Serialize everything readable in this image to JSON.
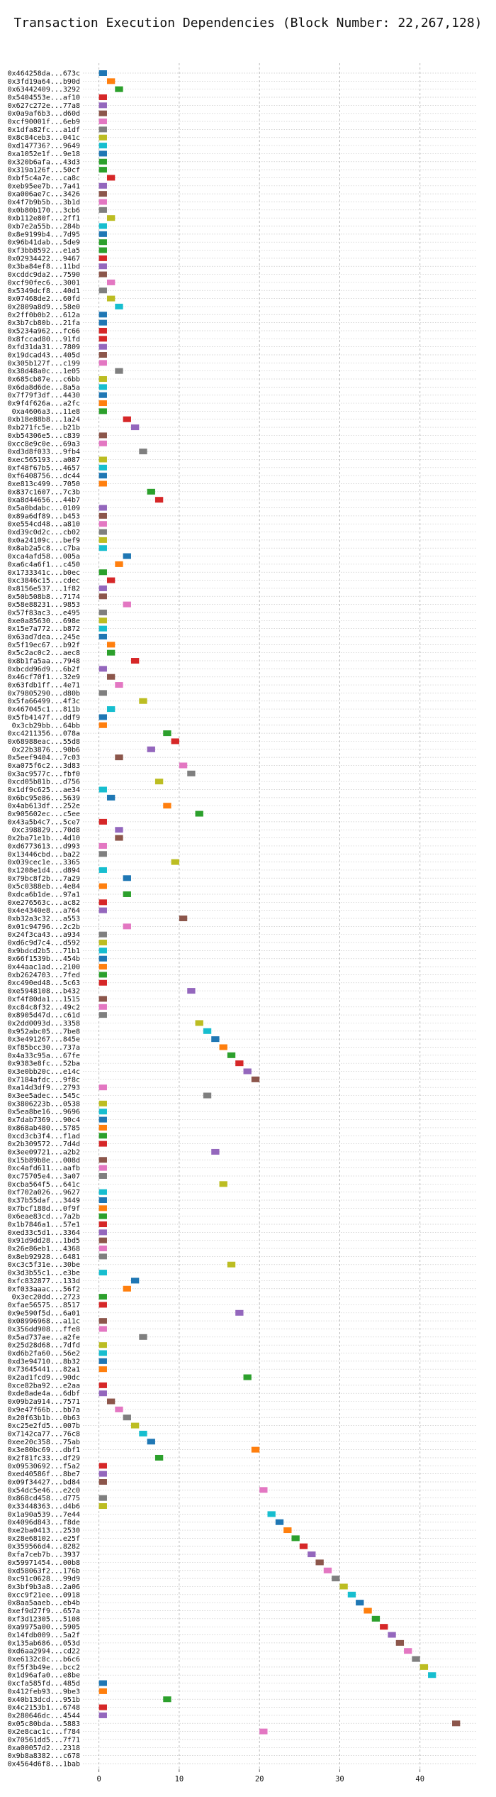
{
  "chart_data": {
    "type": "gantt",
    "title": "Transaction Execution Dependencies (Block Number: 22,267,128)",
    "xlabel": "",
    "ylabel": "",
    "xlim": [
      -2,
      47
    ],
    "x_ticks": [
      0,
      10,
      20,
      30,
      40
    ],
    "grid": true,
    "bar_width": 1,
    "palette": [
      "#1f77b4",
      "#ff7f0e",
      "#2ca02c",
      "#d62728",
      "#9467bd",
      "#8c564b",
      "#e377c2",
      "#7f7f7f",
      "#bcbd22",
      "#17becf"
    ],
    "transactions": [
      "0x464258da...673c",
      "0x3fd19a64...b90d",
      "0x63442409...3292",
      "0x5404553e...af10",
      "0x627c272e...77a8",
      "0x0a9af6b3...d60d",
      "0xcf90001f...6eb9",
      "0x1dfa82fc...a1df",
      "0x8c84ceb3...041c",
      "0xd147736?...9649",
      "0xa1052e1f...9e18",
      "0x320b6afa...43d3",
      "0x319a126f...50cf",
      "0xbf5c4a7e...ca8c",
      "0xeb95ee7b...7a41",
      "0xa006ae7c...3426",
      "0x4f7b9b5b...3b1d",
      "0x0b80b170...3cb6",
      "0xb112e80f...2ff1",
      "0xb7e2a55b...284b",
      "0x8e9199b4...7d95",
      "0x96b41dab...5de9",
      "0xf3bb8592...e1a5",
      "0x02934422...9467",
      "0x3ba84ef8...11bd",
      "0xcddc9da2...7590",
      "0xcf90fec6...3001",
      "0x5349dcf8...40d1",
      "0x07468de2...60fd",
      "0x2809a8d9...58e0",
      "0x2ff0b0b2...612a",
      "0x3b7cb80b...21fa",
      "0x5234a962...fc66",
      "0x8fccad80...91fd",
      "0xfd31da31...7809",
      "0x19dcad43...405d",
      "0x305b127f...c199",
      "0x38d48a0c...1e05",
      "0x685cb87e...c6bb",
      "0x6da8d6de...8a5a",
      "0x7f79f3df...4430",
      "0x9f4f626a...a2fc",
      "0xa4606a3...11e8",
      "0xb18e88b8...1a24",
      "0xb271fc5e...b21b",
      "0xb54306e5...c839",
      "0xcc8e9c0e...69a3",
      "0xd3d8f033...9fb4",
      "0xec565193...a087",
      "0xf48f67b5...4657",
      "0xf6408756...dc44",
      "0xe813c499...7050",
      "0x837c1607...7c3b",
      "0xa8d44656...44b7",
      "0x5a0bdabc...0109",
      "0x89a6df89...b453",
      "0xe554cd48...a810",
      "0xd39c0d2c...cb02",
      "0x0a24109c...bef9",
      "0x8ab2a5c8...c7ba",
      "0xca4afd58...005a",
      "0xa6c4a6f1...c450",
      "0x1733341c...b0ec",
      "0xc3846c15...cdec",
      "0x8156e537...1f82",
      "0x50b508b8...7174",
      "0x58e88231...9853",
      "0x57f83ac3...e495",
      "0xe0a85630...698e",
      "0x15e7a772...b872",
      "0x63ad7dea...245e",
      "0x5f19ec67...b92f",
      "0x5c2ac0c2...aec8",
      "0x8b1fa5aa...7948",
      "0xbcdd96d9...6b2f",
      "0x46cf70f1...32e9",
      "0x63fdb1ff...4e71",
      "0x79805290...d80b",
      "0x5fa66499...4f3c",
      "0x467045c1...811b",
      "0x5fb4147f...ddf9",
      "0x3cb29bb...64bb",
      "0xc4211356...078a",
      "0x68988eac...55d8",
      "0x22b3876...90b6",
      "0x5eef9404...7c03",
      "0xa075f6c2...3d83",
      "0x3ac9577c...fbf0",
      "0xcd05b81b...d756",
      "0x1df9c625...ae34",
      "0x6bc95e86...5639",
      "0x4ab613df...252e",
      "0x905602ec...c5ee",
      "0x43a5b4c7...5ce7",
      "0xc398829...70d8",
      "0x2ba71e1b...4d10",
      "0xd6773613...d993",
      "0x13446cbd...ba22",
      "0x039cec1e...3365",
      "0x1208e1d4...d894",
      "0x79bc8f2b...7a29",
      "0x5c0388eb...4e84",
      "0xdca6b1de...97a1",
      "0xe276563c...ac82",
      "0x4e4340e8...a764",
      "0xb32a3c32...a553",
      "0x01c94796...2c2b",
      "0x24f3ca43...a934",
      "0xd6c9d7c4...d592",
      "0x9bdcd2b5...71b1",
      "0x66f1539b...454b",
      "0x44aac1ad...2100",
      "0xb2624703...7fed",
      "0xc490ed48...5c63",
      "0xe5948108...b432",
      "0xf4f80da1...1515",
      "0xc84c8f32...49c2",
      "0x8905d47d...c61d",
      "0x2dd0093d...3358",
      "0x952abc05...7be8",
      "0x3e491267...845e",
      "0xf85bcc30...737a",
      "0x4a33c95a...67fe",
      "0x9383e8fc...52ba",
      "0x3e0bb20c...e14c",
      "0x7184afdc...9f8c",
      "0xa14d3df9...2793",
      "0x3ee5adec...545c",
      "0x3806223b...0538",
      "0x5ea8be16...9696",
      "0x7dab7369...90c4",
      "0x868ab480...5785",
      "0xcd3cb3f4...f1ad",
      "0x2b309572...7d4d",
      "0x3ee09721...a2b2",
      "0x15b89b8e...008d",
      "0xc4afd611...aafb",
      "0xc75705e4...3a07",
      "0xcba564f5...641c",
      "0xf702a026...9627",
      "0x37b55daf...3449",
      "0x7bcf188d...0f9f",
      "0x6eae83cd...7a2b",
      "0x1b7846a1...57e1",
      "0xed33c5d1...3364",
      "0x91d9dd28...1bd5",
      "0x26e86eb1...4368",
      "0x8eb92928...6481",
      "0xc3c5f31e...30be",
      "0x3d3b55c1...e3be",
      "0xfc832877...133d",
      "0xf033aaac...56f2",
      "0x3ec20dd...2723",
      "0xfae56575...8517",
      "0x9e590f5d...6a01",
      "0x08996968...a11c",
      "0x356dd908...ffe8",
      "0x5ad737ae...a2fe",
      "0x25d28d68...7dfd",
      "0xd6b2fa60...56e2",
      "0xd3e94710...8b32",
      "0x73645441...82a1",
      "0x2ad1fcd9...90dc",
      "0xce82ba92...e2aa",
      "0xde8ade4a...6dbf",
      "0x09b2a914...7571",
      "0x9e47f66b...bb7a",
      "0x20f63b1b...0b63",
      "0xc25e2fd5...007b",
      "0x7142ca77...76c8",
      "0xee20c358...75ab",
      "0x3e80bc69...dbf1",
      "0x2f81fc33...df29",
      "0x09530692...f5a2",
      "0xed40586f...8be7",
      "0x09f34427...bd84",
      "0x54dc5e46...e2c0",
      "0x868cd458...d775",
      "0x33448363...d4b6",
      "0x1a90a539...7e44",
      "0x4096d843...f8de",
      "0xe2ba0413...2530",
      "0x28e68102...e25f",
      "0x359566d4...8282",
      "0xfa7ceb7b...3937",
      "0x59971454...00b8",
      "0xd58063f2...176b",
      "0xc91c0628...99d9",
      "0x3bf9b3a8...2a06",
      "0xcc9f21ee...0918",
      "0x8aa5aaeb...eb4b",
      "0xef9d27f9...657a",
      "0xf3d12305...5108",
      "0xa9975a00...5905",
      "0x14fdb009...5a2f",
      "0x135ab686...053d",
      "0xd6aa2994...cd22",
      "0xe6132c8c...b6c6",
      "0xf5f3b49e...bcc2",
      "0x1d96afa0...e8be",
      "0xcfa585fd...485d",
      "0x412feb93...9be3",
      "0x40b13dcd...951b",
      "0x4c2153b1...6748",
      "0x280646dc...4544",
      "0x05c80bda...5883",
      "0x2e8cac1c...f784",
      "0x70561dd5...7f71",
      "0xa00057d2...2318",
      "0x9b8a8382...c678",
      "0x4564d6f8...1bab"
    ],
    "starts": [
      0,
      1,
      2,
      0,
      0,
      0,
      0,
      0,
      0,
      0,
      0,
      0,
      0,
      1,
      0,
      0,
      0,
      0,
      1,
      0,
      0,
      0,
      0,
      0,
      0,
      0,
      1,
      0,
      1,
      2,
      0,
      0,
      0,
      0,
      0,
      0,
      0,
      2,
      0,
      0,
      0,
      0,
      0,
      3,
      4,
      0,
      0,
      5,
      0,
      0,
      0,
      0,
      6,
      7,
      0,
      0,
      0,
      0,
      0,
      0,
      3,
      2,
      0,
      1,
      0,
      0,
      3,
      0,
      0,
      0,
      0,
      1,
      1,
      4,
      0,
      1,
      2,
      0,
      5,
      1,
      0,
      0,
      8,
      9,
      6,
      2,
      10,
      11,
      7,
      0,
      1,
      8,
      12,
      0,
      2,
      2,
      0,
      0,
      9,
      0,
      3,
      0,
      3,
      0,
      0,
      10,
      3,
      0,
      0,
      0,
      0,
      0,
      0,
      0,
      11,
      0,
      0,
      0,
      12,
      13,
      14,
      15,
      16,
      17,
      18,
      19,
      0,
      13,
      0,
      0,
      0,
      0,
      0,
      0,
      14,
      0,
      0,
      0,
      15,
      0,
      0,
      0,
      0,
      0,
      0,
      0,
      0,
      0,
      16,
      0,
      4,
      3,
      0,
      0,
      17,
      0,
      0,
      5,
      0,
      0,
      0,
      0,
      18,
      0,
      0,
      1,
      2,
      3,
      4,
      5,
      6,
      19,
      7,
      0,
      0,
      0,
      20,
      0,
      0,
      21,
      22,
      23,
      24,
      25,
      26,
      27,
      28,
      29,
      30,
      31,
      32,
      33,
      34,
      35,
      36,
      37,
      38,
      39,
      40,
      41,
      0,
      0,
      8,
      0,
      0,
      44,
      20
    ],
    "colors": [
      0,
      1,
      2,
      3,
      4,
      5,
      6,
      7,
      8,
      9,
      0,
      2,
      2,
      3,
      4,
      5,
      6,
      7,
      8,
      9,
      0,
      2,
      2,
      3,
      4,
      5,
      6,
      7,
      8,
      9,
      0,
      0,
      3,
      3,
      4,
      5,
      6,
      7,
      8,
      9,
      0,
      1,
      2,
      3,
      4,
      5,
      6,
      7,
      8,
      9,
      0,
      1,
      2,
      3,
      4,
      5,
      6,
      7,
      8,
      9,
      0,
      1,
      2,
      3,
      4,
      5,
      6,
      7,
      8,
      9,
      0,
      1,
      2,
      3,
      4,
      5,
      6,
      7,
      8,
      9,
      0,
      1,
      2,
      3,
      4,
      5,
      6,
      7,
      8,
      9,
      0,
      1,
      2,
      3,
      4,
      5,
      6,
      7,
      8,
      9,
      0,
      1,
      2,
      3,
      4,
      5,
      6,
      7,
      8,
      9,
      0,
      1,
      2,
      3,
      4,
      5,
      6,
      7,
      8,
      9,
      0,
      1,
      2,
      3,
      4,
      5,
      6,
      7,
      8,
      9,
      0,
      1,
      2,
      3,
      4,
      5,
      6,
      7,
      8,
      9,
      0,
      1,
      2,
      3,
      4,
      5,
      6,
      7,
      8,
      9,
      0,
      1,
      2,
      3,
      4,
      5,
      6,
      7,
      8,
      9,
      0,
      1,
      2,
      3,
      4,
      5,
      6,
      7,
      8,
      9,
      0,
      1,
      2,
      3,
      4,
      5,
      6,
      7,
      8,
      9,
      0,
      1,
      2,
      3,
      4,
      5,
      6,
      7,
      8,
      9,
      0,
      1,
      2,
      3,
      4,
      5,
      6,
      7,
      8,
      9,
      0,
      1,
      2,
      3,
      4,
      5,
      6,
      7,
      8,
      9,
      0,
      1,
      2,
      3,
      4,
      5,
      6,
      7,
      8,
      9,
      9,
      0
    ]
  }
}
